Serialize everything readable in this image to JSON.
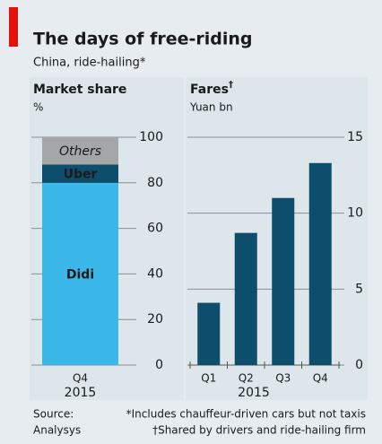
{
  "title": "The days of free-riding",
  "subtitle": "China, ride-hailing*",
  "source_label": "Source:",
  "source": "Analysys",
  "notes": [
    "*Includes chauffeur-driven cars but not taxis",
    "†Shared by drivers and ride-hailing firm"
  ],
  "chart_data": [
    {
      "type": "bar",
      "stacked": true,
      "title": "Market share",
      "y_label": "%",
      "categories": [
        "Q4"
      ],
      "category_group": "2015",
      "series": [
        {
          "name": "Didi",
          "color": "#3cb7e9",
          "label_color": "#ffffff",
          "values": [
            80
          ]
        },
        {
          "name": "Uber",
          "color": "#0d4e6d",
          "label_color": "#ffffff",
          "values": [
            8
          ]
        },
        {
          "name": "Others",
          "color": "#a5a6a8",
          "label_color": "#3a3a3a",
          "label_italic": true,
          "values": [
            12
          ]
        }
      ],
      "ylim": [
        0,
        100
      ],
      "yticks": [
        0,
        20,
        40,
        60,
        80,
        100
      ],
      "grid": true
    },
    {
      "type": "bar",
      "title": "Fares",
      "title_mark": "†",
      "y_label": "Yuan bn",
      "categories": [
        "Q1",
        "Q2",
        "Q3",
        "Q4"
      ],
      "category_group": "2015",
      "values": [
        4.1,
        8.7,
        11,
        13.3
      ],
      "color": "#0d4e6d",
      "ylim": [
        0,
        15
      ],
      "yticks": [
        0,
        5,
        10,
        15
      ],
      "grid": true
    }
  ]
}
